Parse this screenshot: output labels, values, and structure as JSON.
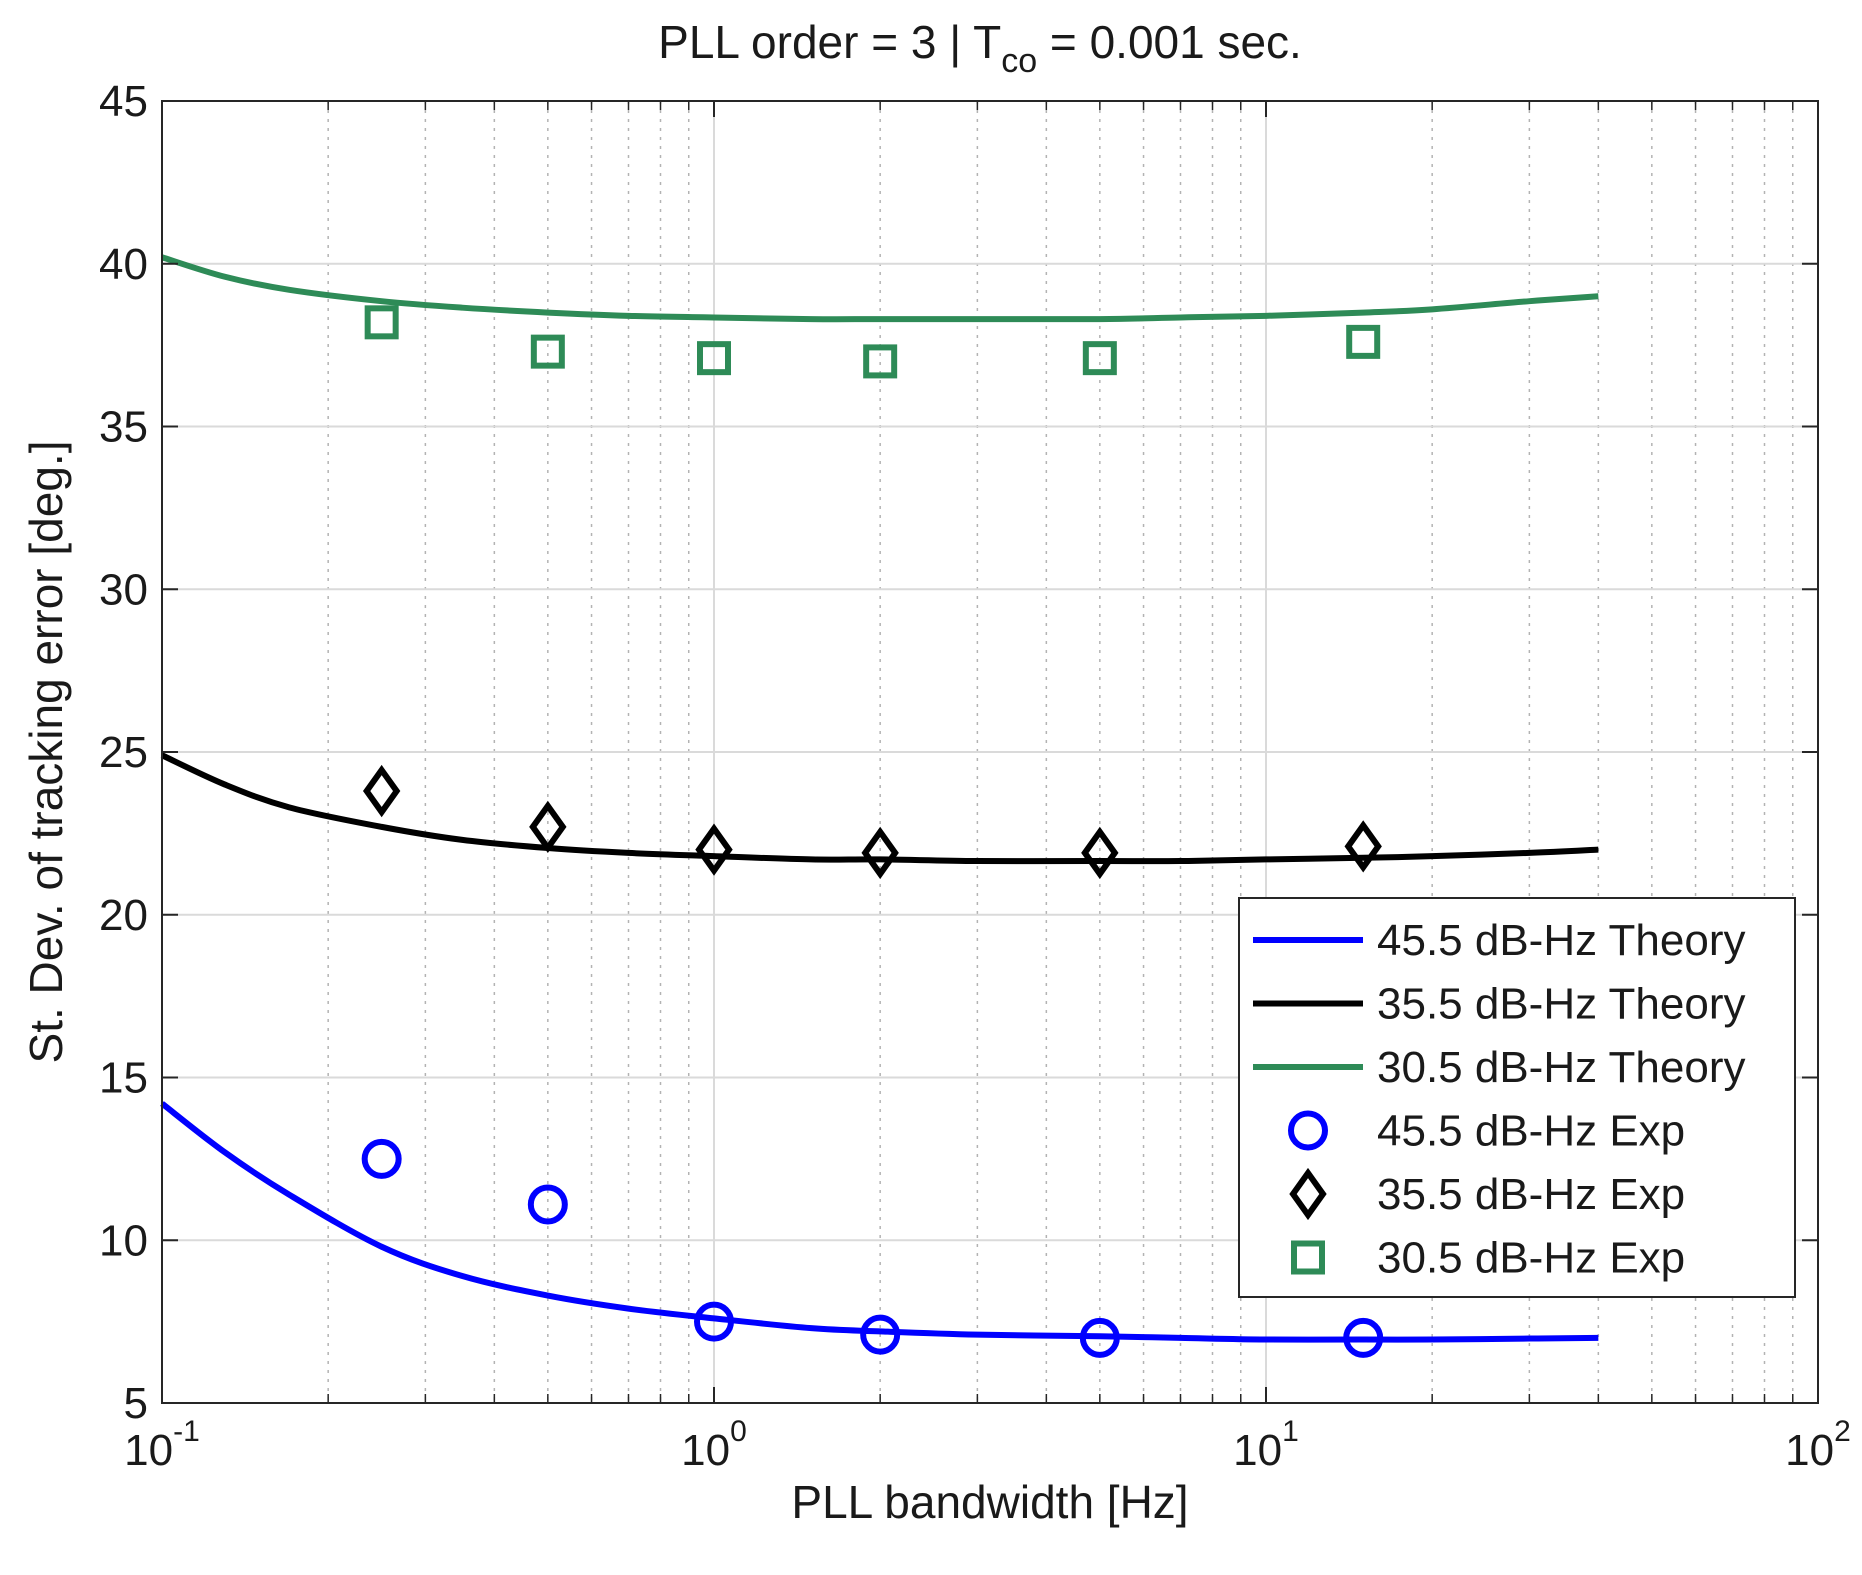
{
  "chart_data": {
    "type": "line",
    "title": {
      "prefix": "PLL order = 3  |  T",
      "subscript": "co",
      "suffix": " = 0.001 sec."
    },
    "xlabel": "PLL bandwidth [Hz]",
    "ylabel": "St. Dev. of tracking error [deg.]",
    "xscale": "log",
    "xlim": [
      0.1,
      100
    ],
    "ylim": [
      5,
      45
    ],
    "grid": true,
    "minor_grid": true,
    "x_ticks": [
      {
        "value": 0.1,
        "base": "10",
        "exp": "-1"
      },
      {
        "value": 1,
        "base": "10",
        "exp": "0"
      },
      {
        "value": 10,
        "base": "10",
        "exp": "1"
      },
      {
        "value": 100,
        "base": "10",
        "exp": "2"
      }
    ],
    "y_ticks": [
      5,
      10,
      15,
      20,
      25,
      30,
      35,
      40,
      45
    ],
    "legend_position": "bottom-right",
    "series": [
      {
        "name": "45.5 dB-Hz Theory",
        "kind": "line",
        "color": "#0000ff",
        "x": [
          0.1,
          0.13,
          0.17,
          0.25,
          0.35,
          0.5,
          0.7,
          1,
          1.5,
          2,
          3,
          5,
          7,
          10,
          15,
          20,
          30,
          40
        ],
        "y": [
          14.2,
          12.7,
          11.4,
          9.8,
          8.9,
          8.3,
          7.9,
          7.6,
          7.3,
          7.2,
          7.1,
          7.05,
          7.0,
          6.95,
          6.95,
          6.95,
          6.98,
          7.0
        ]
      },
      {
        "name": "35.5 dB-Hz Theory",
        "kind": "line",
        "color": "#000000",
        "x": [
          0.1,
          0.13,
          0.17,
          0.25,
          0.35,
          0.5,
          0.7,
          1,
          1.5,
          2,
          3,
          5,
          7,
          10,
          15,
          20,
          30,
          40
        ],
        "y": [
          24.9,
          24.0,
          23.3,
          22.7,
          22.3,
          22.05,
          21.9,
          21.8,
          21.7,
          21.7,
          21.65,
          21.65,
          21.65,
          21.7,
          21.75,
          21.8,
          21.9,
          22.0
        ]
      },
      {
        "name": "30.5 dB-Hz Theory",
        "kind": "line",
        "color": "#2e8b57",
        "x": [
          0.1,
          0.13,
          0.17,
          0.25,
          0.35,
          0.5,
          0.7,
          1,
          1.5,
          2,
          3,
          5,
          7,
          10,
          15,
          20,
          30,
          40
        ],
        "y": [
          40.2,
          39.6,
          39.2,
          38.85,
          38.65,
          38.5,
          38.4,
          38.35,
          38.3,
          38.3,
          38.3,
          38.3,
          38.35,
          38.4,
          38.5,
          38.6,
          38.85,
          39.0
        ]
      },
      {
        "name": "45.5 dB-Hz Exp",
        "kind": "marker",
        "marker": "circle",
        "color": "#0000ff",
        "x": [
          0.25,
          0.5,
          1,
          2,
          5,
          15
        ],
        "y": [
          12.5,
          11.1,
          7.5,
          7.1,
          7.0,
          7.0
        ]
      },
      {
        "name": "35.5 dB-Hz Exp",
        "kind": "marker",
        "marker": "diamond",
        "color": "#000000",
        "x": [
          0.25,
          0.5,
          1,
          2,
          5,
          15
        ],
        "y": [
          23.8,
          22.7,
          22.0,
          21.9,
          21.9,
          22.1
        ]
      },
      {
        "name": "30.5 dB-Hz Exp",
        "kind": "marker",
        "marker": "square",
        "color": "#2e8b57",
        "x": [
          0.25,
          0.5,
          1,
          2,
          5,
          15
        ],
        "y": [
          38.2,
          37.3,
          37.1,
          37.0,
          37.1,
          37.6
        ]
      }
    ]
  }
}
